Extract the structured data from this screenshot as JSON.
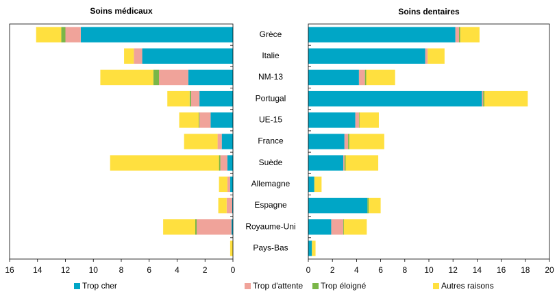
{
  "categories": [
    "Grèce",
    "Italie",
    "NM-13",
    "Portugal",
    "UE-15",
    "France",
    "Suède",
    "Allemagne",
    "Espagne",
    "Royaume-Uni",
    "Pays-Bas"
  ],
  "legend": [
    {
      "name": "Trop cher",
      "color": "#00a6c6"
    },
    {
      "name": "Trop d'attente",
      "color": "#f0a39a"
    },
    {
      "name": "Trop éloigné",
      "color": "#7ab648"
    },
    {
      "name": "Autres raisons",
      "color": "#ffe03f"
    }
  ],
  "chart_data": [
    {
      "type": "bar",
      "orientation": "horizontal",
      "title": "Soins médicaux",
      "xlim": [
        16,
        0
      ],
      "xticks": [
        16,
        14,
        12,
        10,
        8,
        6,
        4,
        2,
        0
      ],
      "series": [
        {
          "values": [
            10.9,
            6.5,
            3.2,
            2.4,
            1.6,
            0.8,
            0.4,
            0.2,
            0.05,
            0.1,
            0
          ]
        },
        {
          "values": [
            1.1,
            0.6,
            2.1,
            0.6,
            0.8,
            0.3,
            0.5,
            0.2,
            0.4,
            2.5,
            0
          ]
        },
        {
          "values": [
            0.3,
            0,
            0.4,
            0.1,
            0.05,
            0,
            0.1,
            0,
            0,
            0.1,
            0
          ]
        },
        {
          "values": [
            1.8,
            0.7,
            3.8,
            1.6,
            1.4,
            2.4,
            7.8,
            0.6,
            0.6,
            2.3,
            0.2
          ]
        }
      ]
    },
    {
      "type": "bar",
      "orientation": "horizontal",
      "title": "Soins dentaires",
      "xlim": [
        0,
        20
      ],
      "xticks": [
        0,
        2,
        4,
        6,
        8,
        10,
        12,
        14,
        16,
        18,
        20
      ],
      "series": [
        {
          "values": [
            12.2,
            9.7,
            4.2,
            14.4,
            3.9,
            3.0,
            2.9,
            0.5,
            4.9,
            1.9,
            0.3
          ]
        },
        {
          "values": [
            0.3,
            0.2,
            0.5,
            0.1,
            0.3,
            0.3,
            0.1,
            0,
            0,
            1.0,
            0
          ]
        },
        {
          "values": [
            0.1,
            0,
            0.1,
            0.1,
            0.05,
            0.1,
            0.1,
            0,
            0.1,
            0.05,
            0
          ]
        },
        {
          "values": [
            1.6,
            1.4,
            2.4,
            3.6,
            1.6,
            2.9,
            2.7,
            0.6,
            1.0,
            1.9,
            0.3
          ]
        }
      ]
    }
  ]
}
